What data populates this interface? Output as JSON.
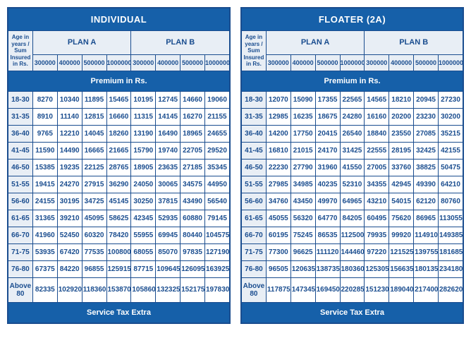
{
  "tables": [
    {
      "title": "INDIVIDUAL",
      "ageHeader": "Age in years / Sum Insured in Rs.",
      "planA": "PLAN A",
      "planB": "PLAN B",
      "amounts": [
        "300000",
        "400000",
        "500000",
        "1000000",
        "300000",
        "400000",
        "500000",
        "1000000"
      ],
      "premiumLabel": "Premium in Rs.",
      "serviceLabel": "Service Tax Extra",
      "rows": [
        {
          "age": "18-30",
          "v": [
            "8270",
            "10340",
            "11895",
            "15465",
            "10195",
            "12745",
            "14660",
            "19060"
          ]
        },
        {
          "age": "31-35",
          "v": [
            "8910",
            "11140",
            "12815",
            "16660",
            "11315",
            "14145",
            "16270",
            "21155"
          ]
        },
        {
          "age": "36-40",
          "v": [
            "9765",
            "12210",
            "14045",
            "18260",
            "13190",
            "16490",
            "18965",
            "24655"
          ]
        },
        {
          "age": "41-45",
          "v": [
            "11590",
            "14490",
            "16665",
            "21665",
            "15790",
            "19740",
            "22705",
            "29520"
          ]
        },
        {
          "age": "46-50",
          "v": [
            "15385",
            "19235",
            "22125",
            "28765",
            "18905",
            "23635",
            "27185",
            "35345"
          ]
        },
        {
          "age": "51-55",
          "v": [
            "19415",
            "24270",
            "27915",
            "36290",
            "24050",
            "30065",
            "34575",
            "44950"
          ]
        },
        {
          "age": "56-60",
          "v": [
            "24155",
            "30195",
            "34725",
            "45145",
            "30250",
            "37815",
            "43490",
            "56540"
          ]
        },
        {
          "age": "61-65",
          "v": [
            "31365",
            "39210",
            "45095",
            "58625",
            "42345",
            "52935",
            "60880",
            "79145"
          ]
        },
        {
          "age": "66-70",
          "v": [
            "41960",
            "52450",
            "60320",
            "78420",
            "55955",
            "69945",
            "80440",
            "104575"
          ]
        },
        {
          "age": "71-75",
          "v": [
            "53935",
            "67420",
            "77535",
            "100800",
            "68055",
            "85070",
            "97835",
            "127190"
          ]
        },
        {
          "age": "76-80",
          "v": [
            "67375",
            "84220",
            "96855",
            "125915",
            "87715",
            "109645",
            "126095",
            "163925"
          ]
        },
        {
          "age": "Above 80",
          "v": [
            "82335",
            "102920",
            "118360",
            "153870",
            "105860",
            "132325",
            "152175",
            "197830"
          ]
        }
      ]
    },
    {
      "title": "FLOATER (2A)",
      "ageHeader": "Age in years / Sum Insured in Rs.",
      "planA": "PLAN A",
      "planB": "PLAN B",
      "amounts": [
        "300000",
        "400000",
        "500000",
        "1000000",
        "300000",
        "400000",
        "500000",
        "1000000"
      ],
      "premiumLabel": "Premium in Rs.",
      "serviceLabel": "Service Tax Extra",
      "rows": [
        {
          "age": "18-30",
          "v": [
            "12070",
            "15090",
            "17355",
            "22565",
            "14565",
            "18210",
            "20945",
            "27230"
          ]
        },
        {
          "age": "31-35",
          "v": [
            "12985",
            "16235",
            "18675",
            "24280",
            "16160",
            "20200",
            "23230",
            "30200"
          ]
        },
        {
          "age": "36-40",
          "v": [
            "14200",
            "17750",
            "20415",
            "26540",
            "18840",
            "23550",
            "27085",
            "35215"
          ]
        },
        {
          "age": "41-45",
          "v": [
            "16810",
            "21015",
            "24170",
            "31425",
            "22555",
            "28195",
            "32425",
            "42155"
          ]
        },
        {
          "age": "46-50",
          "v": [
            "22230",
            "27790",
            "31960",
            "41550",
            "27005",
            "33760",
            "38825",
            "50475"
          ]
        },
        {
          "age": "51-55",
          "v": [
            "27985",
            "34985",
            "40235",
            "52310",
            "34355",
            "42945",
            "49390",
            "64210"
          ]
        },
        {
          "age": "56-60",
          "v": [
            "34760",
            "43450",
            "49970",
            "64965",
            "43210",
            "54015",
            "62120",
            "80760"
          ]
        },
        {
          "age": "61-65",
          "v": [
            "45055",
            "56320",
            "64770",
            "84205",
            "60495",
            "75620",
            "86965",
            "113055"
          ]
        },
        {
          "age": "66-70",
          "v": [
            "60195",
            "75245",
            "86535",
            "112500",
            "79935",
            "99920",
            "114910",
            "149385"
          ]
        },
        {
          "age": "71-75",
          "v": [
            "77300",
            "96625",
            "111120",
            "144460",
            "97220",
            "121525",
            "139755",
            "181685"
          ]
        },
        {
          "age": "76-80",
          "v": [
            "96505",
            "120635",
            "138735",
            "180360",
            "125305",
            "156635",
            "180135",
            "234180"
          ]
        },
        {
          "age": "Above 80",
          "v": [
            "117875",
            "147345",
            "169450",
            "220285",
            "151230",
            "189040",
            "217400",
            "282620"
          ]
        }
      ]
    }
  ]
}
